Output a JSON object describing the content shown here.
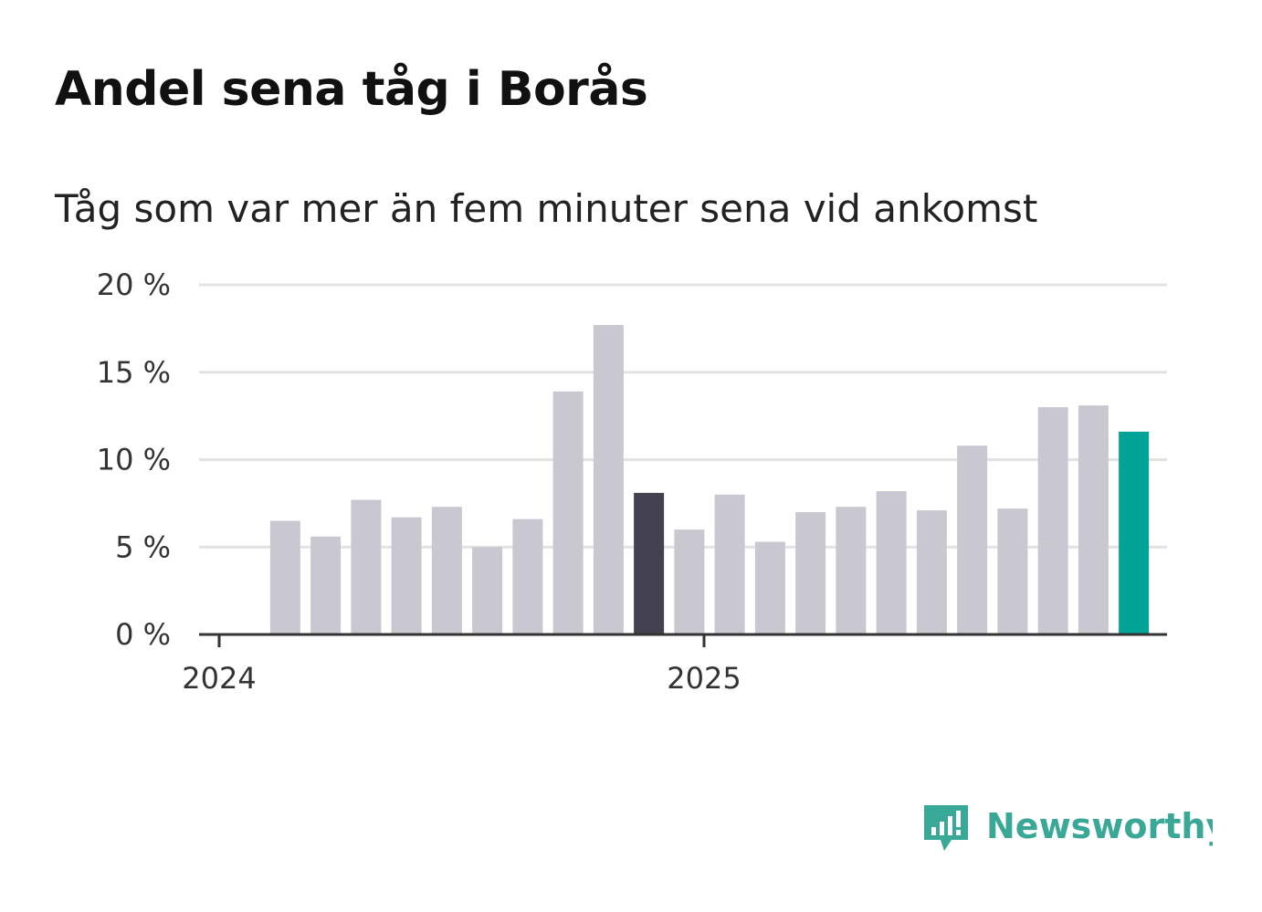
{
  "header": {
    "title": "Andel sena tåg i Borås",
    "subtitle": "Tåg som var mer än fem minuter sena vid ankomst"
  },
  "chart_data": {
    "type": "bar",
    "x": [
      "2024-01",
      "2024-02",
      "2024-03",
      "2024-04",
      "2024-05",
      "2024-06",
      "2024-07",
      "2024-08",
      "2024-09",
      "2024-10",
      "2024-11",
      "2024-12",
      "2025-01",
      "2025-02",
      "2025-03",
      "2025-04",
      "2025-05",
      "2025-06",
      "2025-07",
      "2025-08",
      "2025-09",
      "2025-10",
      "2025-11",
      "2025-12"
    ],
    "values": [
      null,
      6.5,
      5.6,
      7.7,
      6.7,
      7.3,
      5.0,
      6.6,
      13.9,
      17.7,
      8.1,
      6.0,
      8.0,
      5.3,
      7.0,
      7.3,
      8.2,
      7.1,
      10.8,
      7.2,
      13.0,
      13.1,
      11.6,
      null
    ],
    "highlight": {
      "2024-11": "dark",
      "2025-11": "accent"
    },
    "x_tick_labels": [
      {
        "label": "2024",
        "x": "2024-01"
      },
      {
        "label": "2025",
        "x": "2025-01"
      }
    ],
    "y_ticks": [
      0,
      5,
      10,
      15,
      20
    ],
    "y_tick_labels": [
      "0 %",
      "5 %",
      "10 %",
      "15 %",
      "20 %"
    ],
    "ylim": [
      0,
      20
    ],
    "xlabel": "",
    "ylabel": "",
    "grid": true,
    "colors": {
      "default": "#c9c8d1",
      "dark": "#43414f",
      "accent": "#00a396",
      "grid": "#e2e2e2",
      "axis": "#333333"
    }
  },
  "brand": {
    "name": "Newsworthy",
    "logo_icon": "newsworthy-logo-icon",
    "color": "#3aa896"
  }
}
